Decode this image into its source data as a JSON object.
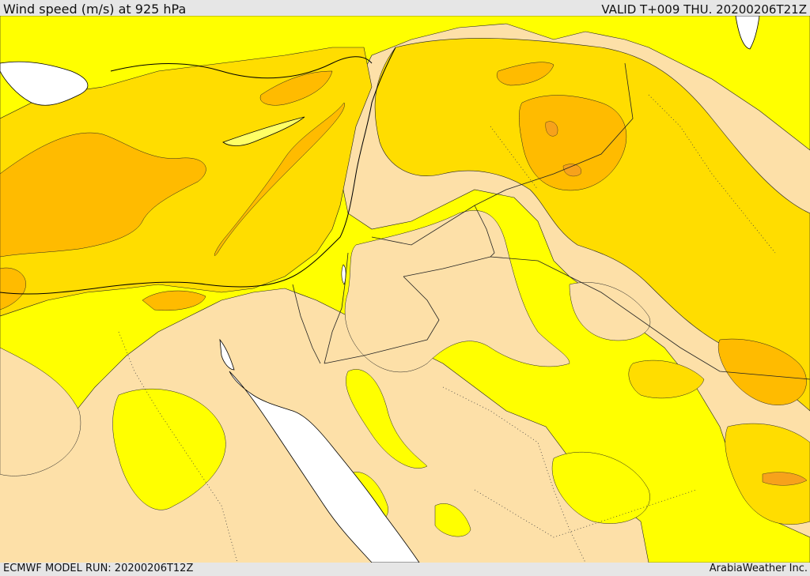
{
  "header": {
    "title": "Wind speed (m/s) at 925 hPa",
    "valid": "VALID T+009 THU. 20200206T21Z"
  },
  "footer": {
    "model_run": "ECMWF MODEL RUN: 20200206T12Z",
    "brand": "ArabiaWeather Inc."
  },
  "colors": {
    "land_calm": "#fde0a8",
    "band_yellow": "#ffff00",
    "band_gold": "#ffdd00",
    "band_amber": "#ffbb00",
    "band_orange": "#f7a21b",
    "water": "#ffffff",
    "coast": "#000000"
  }
}
